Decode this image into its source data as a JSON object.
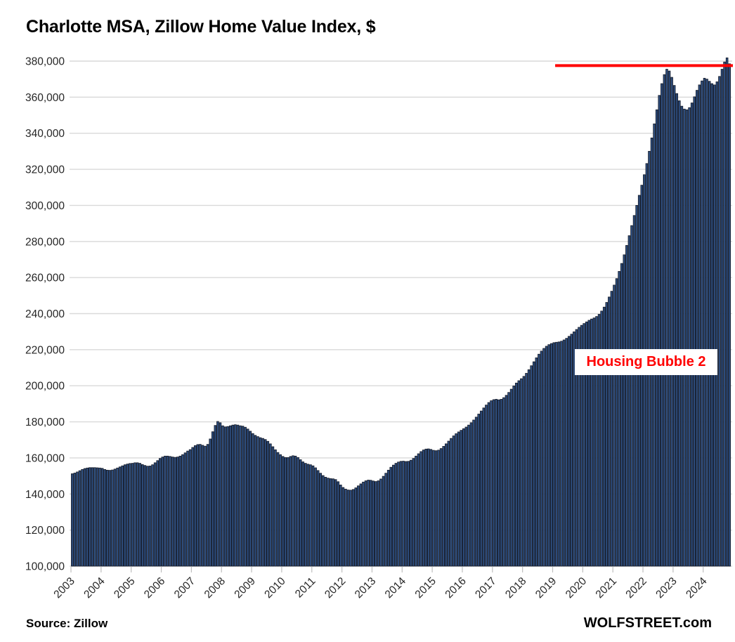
{
  "title": "Charlotte MSA, Zillow Home Value Index, $",
  "annotation": {
    "text": "Housing Bubble 2",
    "color": "#FF0000"
  },
  "footer": {
    "source": "Source: Zillow",
    "brand": "WOLFSTREET.com"
  },
  "chart_data": {
    "type": "bar",
    "title": "Charlotte MSA, Zillow Home Value Index, $",
    "xlabel": "",
    "ylabel": "",
    "ylim": [
      100000,
      380000
    ],
    "y_tick_interval": 20000,
    "y_tick_labels": [
      "100,000",
      "120,000",
      "140,000",
      "160,000",
      "180,000",
      "200,000",
      "220,000",
      "240,000",
      "260,000",
      "280,000",
      "300,000",
      "320,000",
      "340,000",
      "360,000",
      "380,000"
    ],
    "x_tick_labels": [
      "2003",
      "2004",
      "2005",
      "2006",
      "2007",
      "2008",
      "2009",
      "2010",
      "2011",
      "2012",
      "2013",
      "2014",
      "2015",
      "2016",
      "2017",
      "2018",
      "2019",
      "2020",
      "2021",
      "2022",
      "2023",
      "2024"
    ],
    "grid": true,
    "legend": "none",
    "frequency": "monthly",
    "start_month": "2003-01",
    "end_month": "2024-11",
    "bar_color": "#2F5082",
    "bar_outline_color": "#141A28",
    "gridline_color": "#D9D9D9",
    "tick_color": "#BFBFBF",
    "axis_label_color": "#262626",
    "reference_line": {
      "value": 377500,
      "color": "#FF0000",
      "start_month_index": 193,
      "meaning": "level of late-2024 peak drawn back to 2019"
    },
    "series": [
      {
        "name": "Zillow Home Value Index, Charlotte MSA, $",
        "values": [
          151200,
          151600,
          152200,
          152900,
          153600,
          154100,
          154400,
          154600,
          154600,
          154600,
          154500,
          154400,
          154200,
          153600,
          153200,
          153100,
          153300,
          153800,
          154400,
          155000,
          155600,
          156200,
          156600,
          156900,
          157000,
          157300,
          157300,
          157000,
          156300,
          155800,
          155400,
          155500,
          156200,
          157300,
          158500,
          159700,
          160500,
          161000,
          161000,
          160800,
          160500,
          160300,
          160500,
          161000,
          161800,
          162800,
          163800,
          164600,
          165800,
          166800,
          167400,
          167500,
          167000,
          166500,
          167500,
          170500,
          174500,
          178000,
          180200,
          179500,
          177800,
          177200,
          177400,
          177800,
          178200,
          178400,
          178200,
          177800,
          177600,
          177000,
          176000,
          174800,
          173500,
          172500,
          171800,
          171200,
          170800,
          170200,
          169200,
          167800,
          166200,
          164500,
          163000,
          161800,
          160800,
          160200,
          160200,
          160800,
          161200,
          161000,
          160200,
          159000,
          157800,
          157000,
          156500,
          156200,
          155600,
          154500,
          153000,
          151500,
          150200,
          149300,
          148800,
          148500,
          148400,
          148000,
          146800,
          145000,
          143600,
          142700,
          142200,
          142100,
          142500,
          143400,
          144500,
          145600,
          146600,
          147300,
          147700,
          147600,
          147200,
          146900,
          147300,
          148300,
          149800,
          151500,
          153200,
          154800,
          156000,
          157000,
          157700,
          158100,
          158200,
          158000,
          158100,
          158700,
          159700,
          161000,
          162300,
          163500,
          164400,
          164900,
          165000,
          164700,
          164200,
          164000,
          164300,
          165200,
          166400,
          167800,
          169300,
          170800,
          172200,
          173400,
          174400,
          175300,
          176200,
          177100,
          178200,
          179500,
          181000,
          182600,
          184300,
          186000,
          187700,
          189300,
          190700,
          191700,
          192300,
          192500,
          192200,
          192500,
          193400,
          194700,
          196300,
          198100,
          199900,
          201500,
          202800,
          203900,
          205200,
          206900,
          208900,
          211100,
          213300,
          215500,
          217500,
          219200,
          220700,
          221900,
          222800,
          223400,
          223900,
          224100,
          224300,
          224700,
          225400,
          226300,
          227400,
          228600,
          229900,
          231200,
          232400,
          233500,
          234500,
          235400,
          236300,
          237000,
          237600,
          238400,
          239600,
          241400,
          243600,
          246200,
          249200,
          252400,
          255800,
          259400,
          263400,
          267800,
          272600,
          277800,
          283200,
          288800,
          294400,
          300000,
          305600,
          311200,
          317000,
          323200,
          330000,
          337400,
          345200,
          353000,
          361000,
          367500,
          372500,
          375500,
          374500,
          371000,
          366500,
          362000,
          358000,
          355000,
          353400,
          353000,
          354200,
          356800,
          360200,
          363800,
          366800,
          369000,
          370500,
          370000,
          368800,
          367500,
          366800,
          368500,
          371500,
          375500,
          379500,
          381800,
          378500
        ]
      }
    ]
  }
}
